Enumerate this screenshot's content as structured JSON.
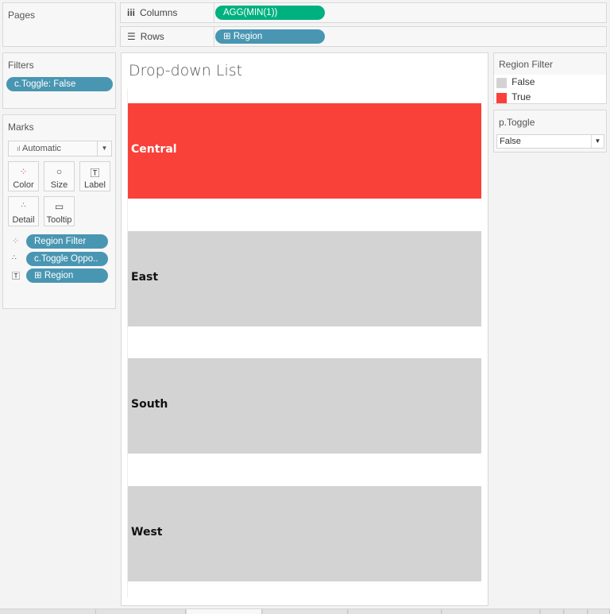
{
  "pages": {
    "title": "Pages"
  },
  "columns": {
    "label": "Columns",
    "pill": "AGG(MIN(1))"
  },
  "rows": {
    "label": "Rows",
    "pill": "Region"
  },
  "filters": {
    "title": "Filters",
    "pills": [
      "c.Toggle: False"
    ]
  },
  "marks": {
    "title": "Marks",
    "mark_type": "Automatic",
    "buttons": [
      "Color",
      "Size",
      "Label",
      "Detail",
      "Tooltip"
    ],
    "fields": [
      "Region Filter",
      "c.Toggle Oppo..",
      "Region"
    ]
  },
  "view": {
    "title": "Drop-down List",
    "bars": [
      {
        "label": "Central",
        "region_filter": "True"
      },
      {
        "label": "East",
        "region_filter": "False"
      },
      {
        "label": "South",
        "region_filter": "False"
      },
      {
        "label": "West",
        "region_filter": "False"
      }
    ]
  },
  "legend": {
    "title": "Region Filter",
    "items": [
      {
        "label": "False",
        "color": "#d3d3d3"
      },
      {
        "label": "True",
        "color": "#f94139"
      }
    ]
  },
  "parameter": {
    "title": "p.Toggle",
    "value": "False"
  }
}
